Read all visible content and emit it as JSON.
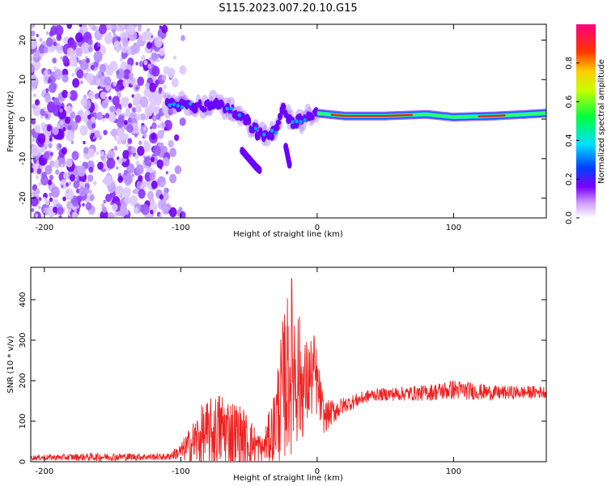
{
  "title": "S115.2023.007.20.10.G15",
  "chart_data": [
    {
      "type": "heatmap",
      "xlabel": "Height of straight line (km)",
      "ylabel": "Frequency (Hz)",
      "xlim": [
        -210,
        168
      ],
      "ylim": [
        -25,
        24
      ],
      "xticks": [
        -200,
        -100,
        0,
        100
      ],
      "yticks": [
        -20,
        -10,
        0,
        10,
        20
      ],
      "colorbar": {
        "label": "Normalized spectral amplitude",
        "range": [
          0,
          1
        ],
        "ticks": [
          "0.0",
          "0.2",
          "0.4",
          "0.6",
          "0.8"
        ]
      },
      "ridge": [
        {
          "x": -110,
          "y": 4
        },
        {
          "x": -95,
          "y": 3.5
        },
        {
          "x": -85,
          "y": 3
        },
        {
          "x": -75,
          "y": 4
        },
        {
          "x": -65,
          "y": 3
        },
        {
          "x": -58,
          "y": 1
        },
        {
          "x": -50,
          "y": -1
        },
        {
          "x": -45,
          "y": -3
        },
        {
          "x": -40,
          "y": -4.5
        },
        {
          "x": -35,
          "y": -4
        },
        {
          "x": -30,
          "y": -3
        },
        {
          "x": -25,
          "y": 3
        },
        {
          "x": -20,
          "y": -0.5
        },
        {
          "x": -15,
          "y": -1
        },
        {
          "x": -10,
          "y": 0
        },
        {
          "x": -5,
          "y": 1
        },
        {
          "x": 0,
          "y": 1.5
        },
        {
          "x": 20,
          "y": 0.8
        },
        {
          "x": 50,
          "y": 0.8
        },
        {
          "x": 80,
          "y": 1.2
        },
        {
          "x": 100,
          "y": 0.5
        },
        {
          "x": 130,
          "y": 0.8
        },
        {
          "x": 168,
          "y": 1.5
        }
      ],
      "branches": [
        {
          "x": [
            -55,
            -50,
            -45,
            -42
          ],
          "y": [
            -8,
            -10,
            -12,
            -13
          ]
        },
        {
          "x": [
            -23,
            -20
          ],
          "y": [
            -7,
            -12
          ]
        }
      ],
      "noise_region": {
        "x": [
          -210,
          -110
        ],
        "y": [
          -25,
          24
        ]
      }
    },
    {
      "type": "line",
      "xlabel": "Height of straight line (km)",
      "ylabel": "SNR (10 * v/v)",
      "xlim": [
        -210,
        168
      ],
      "ylim": [
        0,
        480
      ],
      "xticks": [
        -200,
        -100,
        0,
        100
      ],
      "yticks": [
        0,
        100,
        200,
        300,
        400
      ],
      "color": "#ee2222",
      "envelope": [
        {
          "x": -210,
          "base": 10,
          "amp": 6
        },
        {
          "x": -160,
          "base": 12,
          "amp": 10
        },
        {
          "x": -110,
          "base": 12,
          "amp": 8
        },
        {
          "x": -100,
          "base": 25,
          "amp": 20
        },
        {
          "x": -85,
          "base": 60,
          "amp": 80
        },
        {
          "x": -70,
          "base": 80,
          "amp": 100
        },
        {
          "x": -55,
          "base": 60,
          "amp": 80
        },
        {
          "x": -40,
          "base": 30,
          "amp": 30
        },
        {
          "x": -32,
          "base": 80,
          "amp": 90
        },
        {
          "x": -25,
          "base": 180,
          "amp": 180
        },
        {
          "x": -18,
          "base": 250,
          "amp": 230
        },
        {
          "x": -10,
          "base": 180,
          "amp": 120
        },
        {
          "x": -2,
          "base": 220,
          "amp": 100
        },
        {
          "x": 5,
          "base": 110,
          "amp": 40
        },
        {
          "x": 20,
          "base": 140,
          "amp": 20
        },
        {
          "x": 40,
          "base": 165,
          "amp": 15
        },
        {
          "x": 80,
          "base": 170,
          "amp": 20
        },
        {
          "x": 100,
          "base": 178,
          "amp": 25
        },
        {
          "x": 130,
          "base": 170,
          "amp": 18
        },
        {
          "x": 168,
          "base": 172,
          "amp": 15
        }
      ]
    }
  ]
}
